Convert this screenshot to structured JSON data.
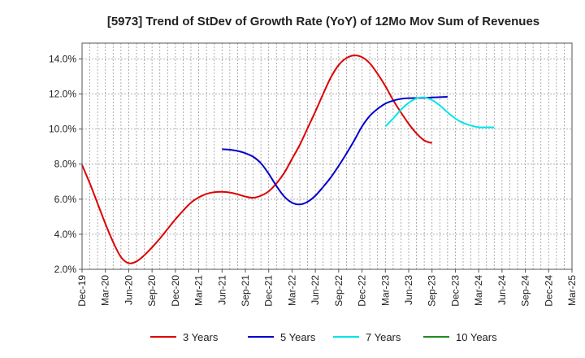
{
  "chart_data": {
    "type": "line",
    "title": "[5973]  Trend of StDev of Growth Rate (YoY) of 12Mo Mov Sum of Revenues",
    "xlabel": "",
    "ylabel": "",
    "ylim": [
      2.0,
      14.9
    ],
    "yticks": [
      2.0,
      4.0,
      6.0,
      8.0,
      10.0,
      12.0,
      14.0
    ],
    "ytick_labels": [
      "2.0%",
      "4.0%",
      "6.0%",
      "8.0%",
      "10.0%",
      "12.0%",
      "14.0%"
    ],
    "x_categories": [
      "Dec-19",
      "Mar-20",
      "Jun-20",
      "Sep-20",
      "Dec-20",
      "Mar-21",
      "Jun-21",
      "Sep-21",
      "Dec-21",
      "Mar-22",
      "Jun-22",
      "Sep-22",
      "Dec-22",
      "Mar-23",
      "Jun-23",
      "Sep-23",
      "Dec-23",
      "Mar-24",
      "Jun-24",
      "Sep-24",
      "Dec-24",
      "Mar-25"
    ],
    "grid": true,
    "legend_position": "bottom",
    "series": [
      {
        "name": "3 Years",
        "color": "#dd0000",
        "start_index": 0,
        "values": [
          7.95,
          6.9,
          5.75,
          4.6,
          3.55,
          2.7,
          2.35,
          2.45,
          2.8,
          3.25,
          3.75,
          4.3,
          4.85,
          5.35,
          5.8,
          6.1,
          6.3,
          6.4,
          6.42,
          6.38,
          6.28,
          6.15,
          6.08,
          6.2,
          6.45,
          6.9,
          7.5,
          8.3,
          9.1,
          10.05,
          11.0,
          12.0,
          12.95,
          13.65,
          14.05,
          14.2,
          14.1,
          13.75,
          13.15,
          12.45,
          11.65,
          10.95,
          10.3,
          9.75,
          9.35,
          9.2
        ]
      },
      {
        "name": "5 Years",
        "color": "#0000cc",
        "start_index": 18,
        "values": [
          8.85,
          8.82,
          8.75,
          8.62,
          8.42,
          8.05,
          7.45,
          6.75,
          6.15,
          5.8,
          5.7,
          5.85,
          6.2,
          6.7,
          7.25,
          7.9,
          8.6,
          9.35,
          10.15,
          10.75,
          11.15,
          11.45,
          11.62,
          11.72,
          11.76,
          11.77,
          11.78,
          11.8,
          11.82,
          11.84
        ]
      },
      {
        "name": "7 Years",
        "color": "#00e5e5",
        "start_index": 39,
        "values": [
          10.15,
          10.6,
          11.1,
          11.5,
          11.75,
          11.8,
          11.65,
          11.35,
          10.95,
          10.6,
          10.35,
          10.2,
          10.1,
          10.1,
          10.1
        ]
      },
      {
        "name": "10 Years",
        "color": "#228b22",
        "start_index": 0,
        "values": []
      }
    ]
  }
}
